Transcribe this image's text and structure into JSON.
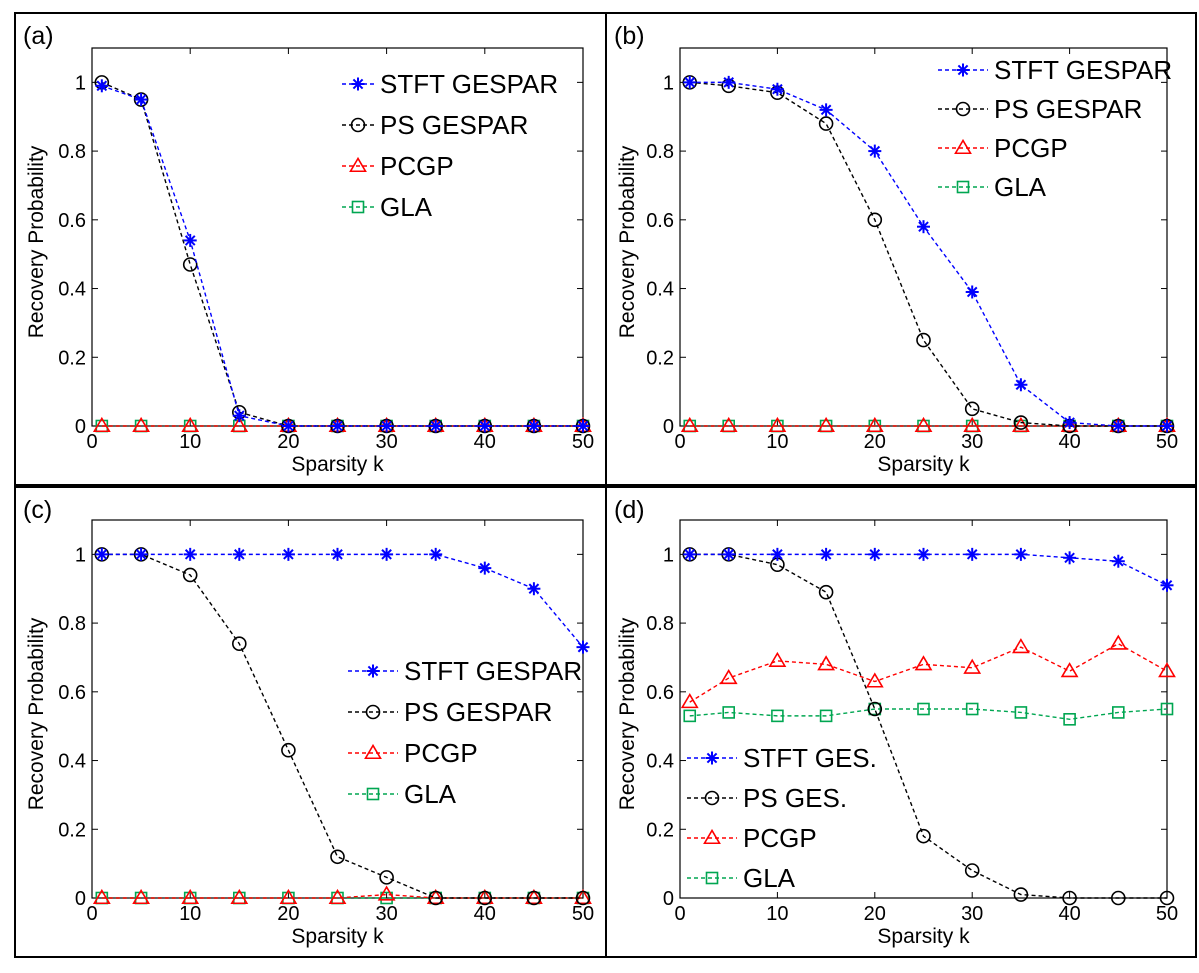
{
  "chart_data": [
    {
      "type": "line",
      "panel_label": "(a)",
      "xlabel": "Sparsity k",
      "ylabel": "Recovery Probability",
      "xlim": [
        0,
        50
      ],
      "ylim": [
        0,
        1.1
      ],
      "x_ticks": [
        "0",
        "10",
        "20",
        "30",
        "40",
        "50"
      ],
      "y_ticks": [
        "0",
        "0.2",
        "0.4",
        "0.6",
        "0.8",
        "1"
      ],
      "legend_position": "top-right",
      "x": [
        1,
        5,
        10,
        15,
        20,
        25,
        30,
        35,
        40,
        45,
        50
      ],
      "series": [
        {
          "name": "STFT GESPAR",
          "color": "#0000ff",
          "marker": "star",
          "values": [
            0.99,
            0.95,
            0.54,
            0.03,
            0,
            0,
            0,
            0,
            0,
            0,
            0
          ]
        },
        {
          "name": "PS GESPAR",
          "color": "#000000",
          "marker": "circle",
          "values": [
            1.0,
            0.95,
            0.47,
            0.04,
            0,
            0,
            0,
            0,
            0,
            0,
            0
          ]
        },
        {
          "name": "PCGP",
          "color": "#ff0000",
          "marker": "triangle",
          "values": [
            0,
            0,
            0,
            0,
            0,
            0,
            0,
            0,
            0,
            0,
            0
          ]
        },
        {
          "name": "GLA",
          "color": "#00a651",
          "marker": "square",
          "values": [
            0,
            0,
            0,
            0,
            0,
            0,
            0,
            0,
            0,
            0,
            0
          ]
        }
      ]
    },
    {
      "type": "line",
      "panel_label": "(b)",
      "xlabel": "Sparsity k",
      "ylabel": "Recovery Probability",
      "xlim": [
        0,
        50
      ],
      "ylim": [
        0,
        1.1
      ],
      "x_ticks": [
        "0",
        "10",
        "20",
        "30",
        "40",
        "50"
      ],
      "y_ticks": [
        "0",
        "0.2",
        "0.4",
        "0.6",
        "0.8",
        "1"
      ],
      "legend_position": "top-right",
      "x": [
        1,
        5,
        10,
        15,
        20,
        25,
        30,
        35,
        40,
        45,
        50
      ],
      "series": [
        {
          "name": "STFT GESPAR",
          "color": "#0000ff",
          "marker": "star",
          "values": [
            1.0,
            1.0,
            0.98,
            0.92,
            0.8,
            0.58,
            0.39,
            0.12,
            0.01,
            0,
            0
          ]
        },
        {
          "name": "PS GESPAR",
          "color": "#000000",
          "marker": "circle",
          "values": [
            1.0,
            0.99,
            0.97,
            0.88,
            0.6,
            0.25,
            0.05,
            0.01,
            0,
            0,
            0
          ]
        },
        {
          "name": "PCGP",
          "color": "#ff0000",
          "marker": "triangle",
          "values": [
            0,
            0,
            0,
            0,
            0,
            0,
            0,
            0,
            0,
            0,
            0
          ]
        },
        {
          "name": "GLA",
          "color": "#00a651",
          "marker": "square",
          "values": [
            0,
            0,
            0,
            0,
            0,
            0,
            0,
            0,
            0,
            0,
            0
          ]
        }
      ]
    },
    {
      "type": "line",
      "panel_label": "(c)",
      "xlabel": "Sparsity k",
      "ylabel": "Recovery Probability",
      "xlim": [
        0,
        50
      ],
      "ylim": [
        0,
        1.1
      ],
      "x_ticks": [
        "0",
        "10",
        "20",
        "30",
        "40",
        "50"
      ],
      "y_ticks": [
        "0",
        "0.2",
        "0.4",
        "0.6",
        "0.8",
        "1"
      ],
      "legend_position": "center-right",
      "x": [
        1,
        5,
        10,
        15,
        20,
        25,
        30,
        35,
        40,
        45,
        50
      ],
      "series": [
        {
          "name": "STFT GESPAR",
          "color": "#0000ff",
          "marker": "star",
          "values": [
            1.0,
            1.0,
            1.0,
            1.0,
            1.0,
            1.0,
            1.0,
            1.0,
            0.96,
            0.9,
            0.73
          ]
        },
        {
          "name": "PS GESPAR",
          "color": "#000000",
          "marker": "circle",
          "values": [
            1.0,
            1.0,
            0.94,
            0.74,
            0.43,
            0.12,
            0.06,
            0,
            0,
            0,
            0
          ]
        },
        {
          "name": "PCGP",
          "color": "#ff0000",
          "marker": "triangle",
          "values": [
            0,
            0,
            0,
            0,
            0,
            0,
            0.01,
            0,
            0,
            0,
            0
          ]
        },
        {
          "name": "GLA",
          "color": "#00a651",
          "marker": "square",
          "values": [
            0,
            0,
            0,
            0,
            0,
            0,
            0,
            0,
            0,
            0,
            0
          ]
        }
      ]
    },
    {
      "type": "line",
      "panel_label": "(d)",
      "xlabel": "Sparsity k",
      "ylabel": "Recovery Probability",
      "xlim": [
        0,
        50
      ],
      "ylim": [
        0,
        1.1
      ],
      "x_ticks": [
        "0",
        "10",
        "20",
        "30",
        "40",
        "50"
      ],
      "y_ticks": [
        "0",
        "0.2",
        "0.4",
        "0.6",
        "0.8",
        "1"
      ],
      "legend_position": "bottom-left",
      "x": [
        1,
        5,
        10,
        15,
        20,
        25,
        30,
        35,
        40,
        45,
        50
      ],
      "series": [
        {
          "name": "STFT GES.",
          "color": "#0000ff",
          "marker": "star",
          "values": [
            1.0,
            1.0,
            1.0,
            1.0,
            1.0,
            1.0,
            1.0,
            1.0,
            0.99,
            0.98,
            0.91
          ]
        },
        {
          "name": "PS GES.",
          "color": "#000000",
          "marker": "circle",
          "values": [
            1.0,
            1.0,
            0.97,
            0.89,
            0.55,
            0.18,
            0.08,
            0.01,
            0,
            0,
            0
          ]
        },
        {
          "name": "PCGP",
          "color": "#ff0000",
          "marker": "triangle",
          "values": [
            0.57,
            0.64,
            0.69,
            0.68,
            0.63,
            0.68,
            0.67,
            0.73,
            0.66,
            0.74,
            0.66
          ]
        },
        {
          "name": "GLA",
          "color": "#00a651",
          "marker": "square",
          "values": [
            0.53,
            0.54,
            0.53,
            0.53,
            0.55,
            0.55,
            0.55,
            0.54,
            0.52,
            0.54,
            0.55
          ]
        }
      ]
    }
  ]
}
